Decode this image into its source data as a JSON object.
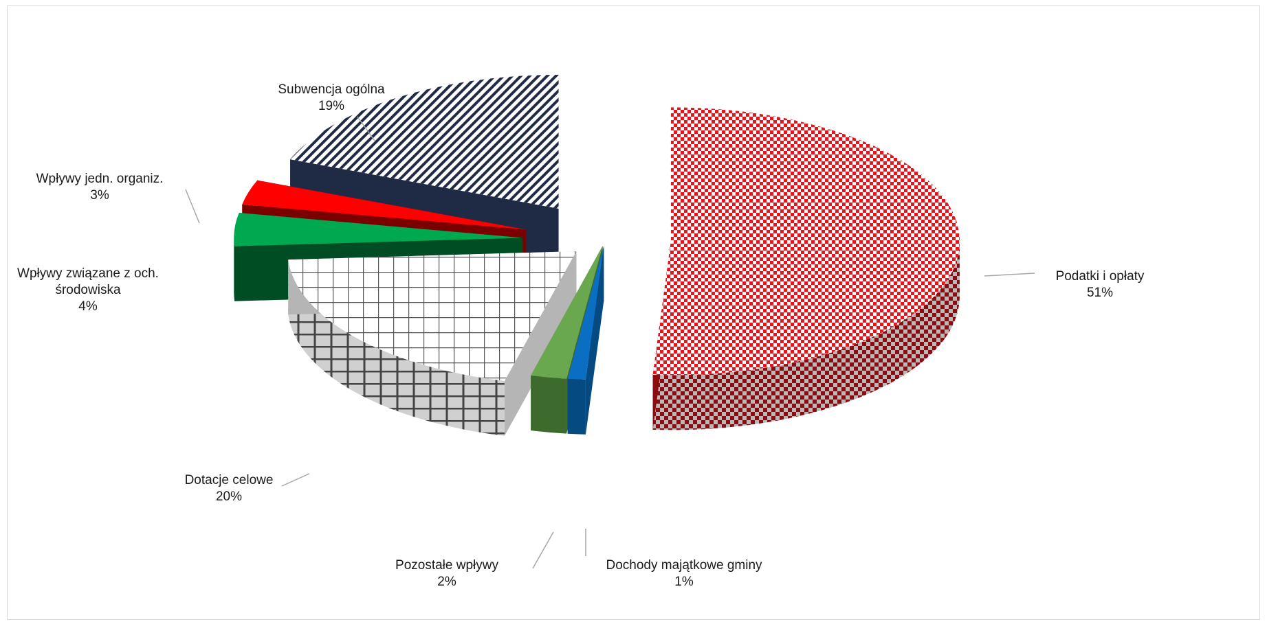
{
  "chart_data": {
    "type": "pie",
    "style": "3d-exploded",
    "title": "",
    "unit": "%",
    "slices": [
      {
        "category": "Podatki i opłaty",
        "value": 51,
        "label_lines": [
          "Podatki i opłaty",
          "51%"
        ],
        "color": "#e8141b",
        "side_color": "#8b0d12",
        "pattern": "checker"
      },
      {
        "category": "Dochody majątkowe gminy",
        "value": 1,
        "label_lines": [
          "Dochody   majątkowe gminy",
          "1%"
        ],
        "color": "#0a6fc2",
        "side_color": "#064a82",
        "pattern": "solid"
      },
      {
        "category": "Pozostałe wpływy",
        "value": 2,
        "label_lines": [
          "Pozostałe wpływy",
          "2%"
        ],
        "color": "#6aa84f",
        "side_color": "#3d6b2e",
        "pattern": "solid"
      },
      {
        "category": "Dotacje celowe",
        "value": 20,
        "label_lines": [
          "Dotacje celowe",
          "20%"
        ],
        "color": "#ffffff",
        "side_color": "#b5b5b5",
        "pattern": "grid"
      },
      {
        "category": "Wpływy związane z och. środowiska",
        "value": 4,
        "label_lines": [
          "Wpływy związane z och.",
          "środowiska",
          "4%"
        ],
        "color": "#00a84f",
        "side_color": "#004d24",
        "pattern": "solid"
      },
      {
        "category": "Wpływy jedn. organiz.",
        "value": 3,
        "label_lines": [
          "Wpływy jedn. organiz.",
          "3%"
        ],
        "color": "#ff0000",
        "side_color": "#7a0000",
        "pattern": "solid"
      },
      {
        "category": "Subwencja ogólna",
        "value": 19,
        "label_lines": [
          "Subwencja ogólna",
          "19%"
        ],
        "color": "#1f2a44",
        "side_color": "#1f2a44",
        "pattern": "diagonal"
      }
    ]
  }
}
